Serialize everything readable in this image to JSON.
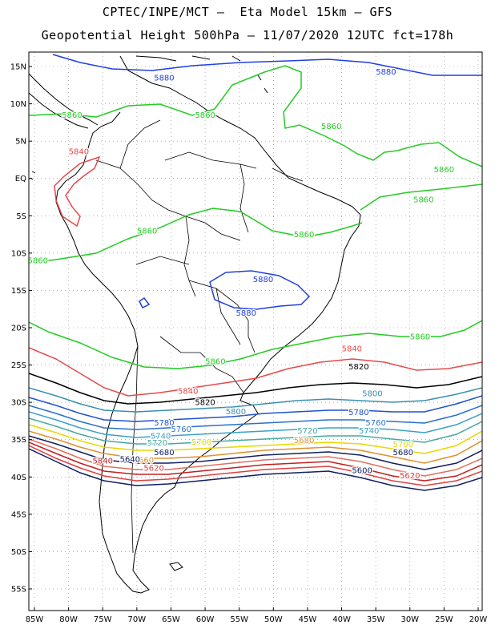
{
  "title_line1": "CPTEC/INPE/MCT –  Eta Model 15km – GFS",
  "title_line2": "Geopotential Height 500hPa – 11/07/2020 12UTC fct=178h",
  "lat_labels": [
    "15N",
    "10N",
    "5N",
    "EQ",
    "5S",
    "10S",
    "15S",
    "20S",
    "25S",
    "30S",
    "35S",
    "40S",
    "45S",
    "50S",
    "55S"
  ],
  "lon_labels": [
    "85W",
    "80W",
    "75W",
    "70W",
    "65W",
    "60W",
    "55W",
    "50W",
    "45W",
    "40W",
    "35W",
    "30W",
    "25W",
    "20W"
  ],
  "contour_levels": [
    {
      "value": 5880,
      "color": "#1f3fe0"
    },
    {
      "value": 5860,
      "color": "#22cc22"
    },
    {
      "value": 5840,
      "color": "#e84848"
    },
    {
      "value": 5820,
      "color": "#000000"
    },
    {
      "value": 5800,
      "color": "#3a8fb0"
    },
    {
      "value": 5780,
      "color": "#2050d0"
    },
    {
      "value": 5760,
      "color": "#2a70c8"
    },
    {
      "value": 5740,
      "color": "#3aa0c8"
    },
    {
      "value": 5720,
      "color": "#48a8a0"
    },
    {
      "value": 5700,
      "color": "#e6d800"
    },
    {
      "value": 5680,
      "color": "#e09030"
    },
    {
      "value": 5660,
      "color": "#e07060"
    },
    {
      "value": 5640,
      "color": "#c02020"
    },
    {
      "value": 5620,
      "color": "#e04040"
    },
    {
      "value": 5600,
      "color": "#102060"
    }
  ],
  "contour_labels": [
    {
      "text": "5880",
      "lon": -66,
      "lat": 13.5,
      "color": "#1f3fe0"
    },
    {
      "text": "5880",
      "lon": -33.5,
      "lat": 14.3,
      "color": "#1f3fe0"
    },
    {
      "text": "5880",
      "lon": -51.5,
      "lat": -13.5,
      "color": "#1f3fe0"
    },
    {
      "text": "5880",
      "lon": -54,
      "lat": -18,
      "color": "#1f3fe0"
    },
    {
      "text": "5860",
      "lon": -79.5,
      "lat": 8.5,
      "color": "#22cc22"
    },
    {
      "text": "5860",
      "lon": -60,
      "lat": 8.5,
      "color": "#22cc22"
    },
    {
      "text": "5860",
      "lon": -41.5,
      "lat": 7.0,
      "color": "#22cc22"
    },
    {
      "text": "5860",
      "lon": -25,
      "lat": 1.2,
      "color": "#22cc22"
    },
    {
      "text": "5860",
      "lon": -28,
      "lat": -2.8,
      "color": "#22cc22"
    },
    {
      "text": "5860",
      "lon": -68.5,
      "lat": -7.0,
      "color": "#22cc22"
    },
    {
      "text": "5860",
      "lon": -45.5,
      "lat": -7.5,
      "color": "#22cc22"
    },
    {
      "text": "5860",
      "lon": -84.5,
      "lat": -11.0,
      "color": "#22cc22"
    },
    {
      "text": "5860",
      "lon": -58.5,
      "lat": -24.5,
      "color": "#22cc22"
    },
    {
      "text": "5860",
      "lon": -28.5,
      "lat": -21.2,
      "color": "#22cc22"
    },
    {
      "text": "5840",
      "lon": -78.5,
      "lat": 3.6,
      "color": "#e84848"
    },
    {
      "text": "5840",
      "lon": -38.5,
      "lat": -22.8,
      "color": "#e84848"
    },
    {
      "text": "5840",
      "lon": -62.5,
      "lat": -28.5,
      "color": "#e84848"
    },
    {
      "text": "5840",
      "lon": -75,
      "lat": -37.8,
      "color": "#c02020"
    },
    {
      "text": "5820",
      "lon": -37.5,
      "lat": -25.2,
      "color": "#000000"
    },
    {
      "text": "5820",
      "lon": -60,
      "lat": -30.0,
      "color": "#000000"
    },
    {
      "text": "5800",
      "lon": -35.5,
      "lat": -28.8,
      "color": "#3a8fb0"
    },
    {
      "text": "5800",
      "lon": -55.5,
      "lat": -31.2,
      "color": "#3a8fb0"
    },
    {
      "text": "5780",
      "lon": -37.5,
      "lat": -31.3,
      "color": "#2050d0"
    },
    {
      "text": "5780",
      "lon": -66,
      "lat": -32.7,
      "color": "#2050d0"
    },
    {
      "text": "5760",
      "lon": -35,
      "lat": -32.7,
      "color": "#2a70c8"
    },
    {
      "text": "5760",
      "lon": -63.5,
      "lat": -33.6,
      "color": "#2a70c8"
    },
    {
      "text": "5740",
      "lon": -36,
      "lat": -33.8,
      "color": "#3aa0c8"
    },
    {
      "text": "5740",
      "lon": -66.5,
      "lat": -34.5,
      "color": "#3aa0c8"
    },
    {
      "text": "5720",
      "lon": -45,
      "lat": -33.8,
      "color": "#48a8a0"
    },
    {
      "text": "5720",
      "lon": -67,
      "lat": -35.4,
      "color": "#48a8a0"
    },
    {
      "text": "5700",
      "lon": -31,
      "lat": -35.6,
      "color": "#e6d800"
    },
    {
      "text": "5700",
      "lon": -60.5,
      "lat": -35.3,
      "color": "#e6d800"
    },
    {
      "text": "5680",
      "lon": -45.5,
      "lat": -35.1,
      "color": "#e09030"
    },
    {
      "text": "5680",
      "lon": -31,
      "lat": -36.7,
      "color": "#102060"
    },
    {
      "text": "5680",
      "lon": -66,
      "lat": -36.7,
      "color": "#102060"
    },
    {
      "text": "5660",
      "lon": -69,
      "lat": -37.7,
      "color": "#e09030"
    },
    {
      "text": "5640",
      "lon": -71,
      "lat": -37.6,
      "color": "#102060"
    },
    {
      "text": "5620",
      "lon": -67.5,
      "lat": -38.8,
      "color": "#e04040"
    },
    {
      "text": "5620",
      "lon": -30,
      "lat": -39.8,
      "color": "#e04040"
    },
    {
      "text": "5600",
      "lon": -37,
      "lat": -39.1,
      "color": "#102060"
    }
  ]
}
